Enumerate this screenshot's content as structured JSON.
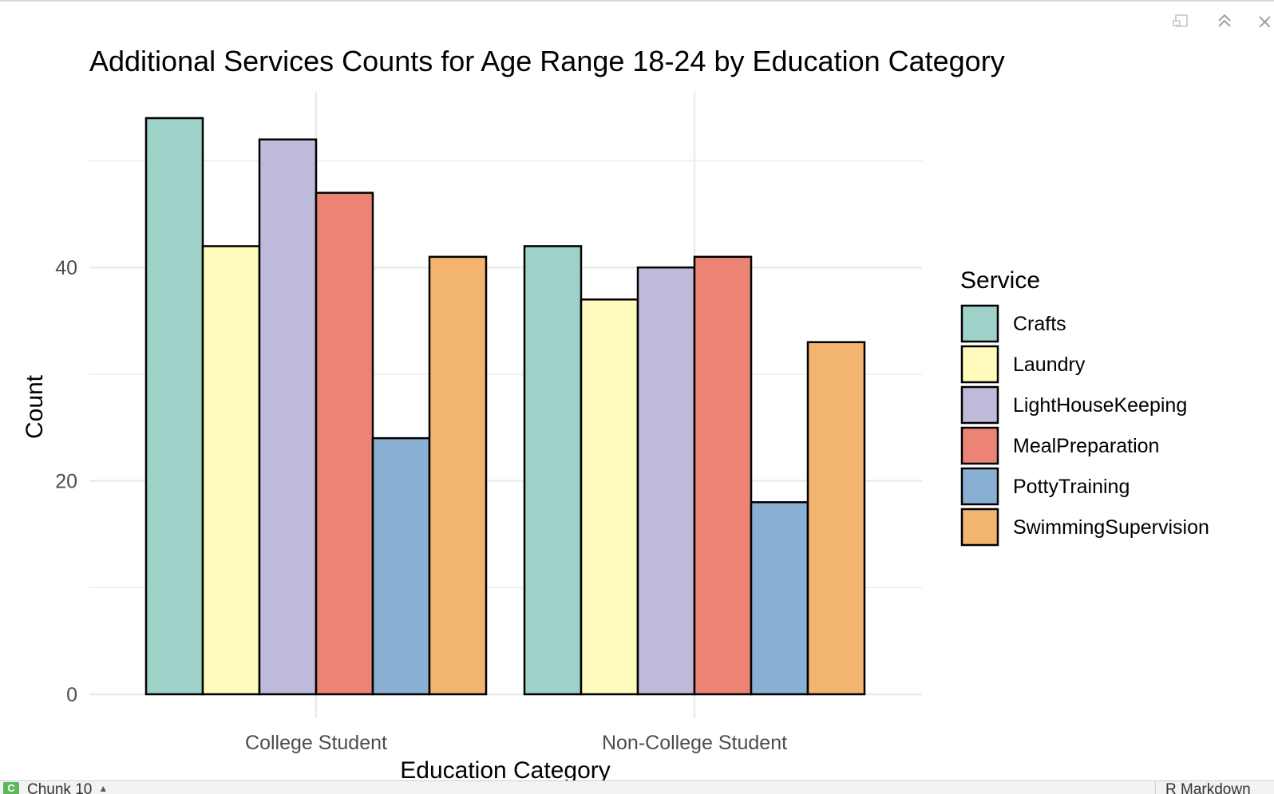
{
  "pane_controls": [
    {
      "name": "export-icon"
    },
    {
      "name": "collapse-chevron-icon"
    },
    {
      "name": "close-icon"
    }
  ],
  "chart_data": {
    "type": "bar",
    "title": "Additional Services Counts for Age Range 18-24 by Education Category",
    "xlabel": "Education Category",
    "ylabel": "Count",
    "categories": [
      "College Student",
      "Non-College Student"
    ],
    "ylim": [
      0,
      55
    ],
    "yticks": [
      0,
      20,
      40
    ],
    "grid": true,
    "legend_title": "Service",
    "legend_position": "right",
    "series": [
      {
        "name": "Crafts",
        "color": "#9ED1C8",
        "values": [
          54,
          42
        ]
      },
      {
        "name": "Laundry",
        "color": "#FEFBBC",
        "values": [
          42,
          37
        ]
      },
      {
        "name": "LightHouseKeeping",
        "color": "#BEBAD9",
        "values": [
          52,
          40
        ]
      },
      {
        "name": "MealPreparation",
        "color": "#EB8475",
        "values": [
          47,
          41
        ]
      },
      {
        "name": "PottyTraining",
        "color": "#89B0D3",
        "values": [
          24,
          18
        ]
      },
      {
        "name": "SwimmingSupervision",
        "color": "#F2B46F",
        "values": [
          41,
          33
        ]
      }
    ]
  },
  "status_bar": {
    "chunk_badge": "C",
    "chunk_label": "Chunk 10",
    "chunk_caret": "▲",
    "doc_type": "R Markdown"
  }
}
